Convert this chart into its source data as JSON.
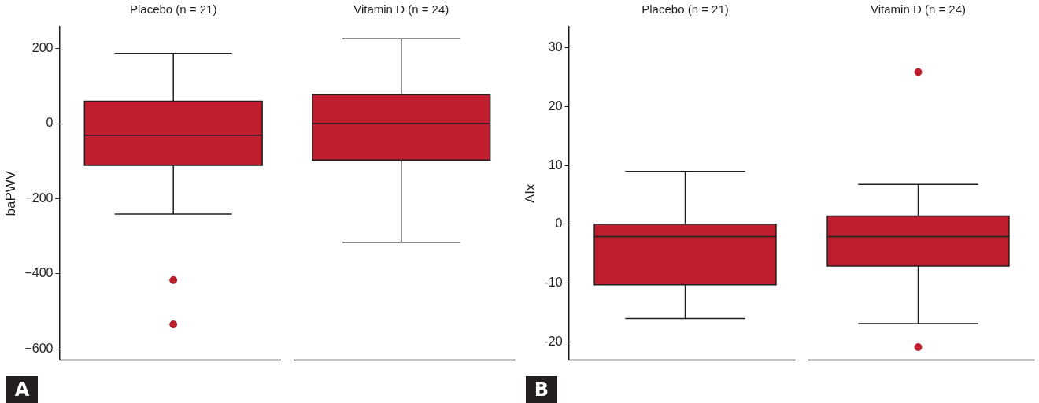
{
  "chart_data": [
    {
      "type": "box",
      "ylabel": "baPWV",
      "categories": [
        "Placebo (n = 21)",
        "Vitamin D (n = 24)"
      ],
      "series": [
        {
          "color": "#be1e2d",
          "boxes": [
            {
              "low": -241,
              "q1": -111,
              "median": -31,
              "q3": 60,
              "high": 187,
              "outliers": [
                -417,
                -535
              ]
            },
            {
              "low": -316,
              "q1": -97,
              "median": 0,
              "q3": 77,
              "high": 226
            }
          ]
        }
      ],
      "ylim": [
        -630,
        258
      ],
      "yticks": [
        {
          "value": -600,
          "label": "−600"
        },
        {
          "value": -400,
          "label": "−400"
        },
        {
          "value": -200,
          "label": "−200"
        },
        0,
        200
      ],
      "grid": false,
      "legend": false,
      "annotations": [
        "A"
      ]
    },
    {
      "type": "box",
      "ylabel": "AIx",
      "categories": [
        "Placebo (n = 21)",
        "Vitamin D (n = 24)"
      ],
      "series": [
        {
          "color": "#be1e2d",
          "boxes": [
            {
              "low": -16,
              "q1": -10.3,
              "median": -2.1,
              "q3": 0,
              "high": 9
            },
            {
              "low": -16.9,
              "q1": -7.1,
              "median": -2.1,
              "q3": 1.4,
              "high": 6.8,
              "outliers": [
                25.9,
                -20.9
              ]
            }
          ]
        }
      ],
      "ylim": [
        -23.1,
        33.6
      ],
      "yticks": [
        -20,
        -10,
        0,
        10,
        20,
        30
      ],
      "grid": false,
      "legend": false,
      "annotations": [
        "B"
      ]
    }
  ]
}
